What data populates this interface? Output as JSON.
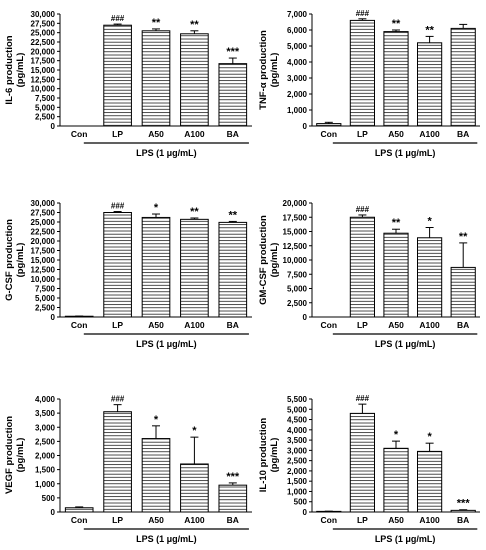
{
  "chart_data": [
    {
      "type": "bar",
      "categories": [
        "Con",
        "LP",
        "A50",
        "A100",
        "BA"
      ],
      "values": [
        0,
        27000,
        25500,
        24700,
        16700
      ],
      "errors": [
        0,
        300,
        500,
        800,
        1500
      ],
      "significance": [
        "",
        "###",
        "**",
        "**",
        "***"
      ],
      "ylabel": [
        "IL-6 production",
        "(pg/mL)"
      ],
      "ylim": [
        0,
        30000
      ],
      "yticks": [
        "0",
        "2,500",
        "5,000",
        "7,500",
        "10,000",
        "12,500",
        "15,000",
        "17,500",
        "20,000",
        "22,500",
        "25,000",
        "27,500",
        "30,000"
      ],
      "group_label": "LPS (1 μg/mL)"
    },
    {
      "type": "bar",
      "categories": [
        "Con",
        "LP",
        "A50",
        "A100",
        "BA"
      ],
      "values": [
        150,
        6600,
        5900,
        5200,
        6100
      ],
      "errors": [
        80,
        100,
        100,
        400,
        250
      ],
      "significance": [
        "",
        "###",
        "**",
        "**",
        ""
      ],
      "ylabel": [
        "TNF-α production",
        "(pg/mL)"
      ],
      "ylim": [
        0,
        7000
      ],
      "yticks": [
        "0",
        "1,000",
        "2,000",
        "3,000",
        "4,000",
        "5,000",
        "6,000",
        "7,000"
      ],
      "group_label": "LPS (1 μg/mL)"
    },
    {
      "type": "bar",
      "categories": [
        "Con",
        "LP",
        "A50",
        "A100",
        "BA"
      ],
      "values": [
        200,
        27500,
        26200,
        25700,
        24900
      ],
      "errors": [
        50,
        250,
        900,
        350,
        250
      ],
      "significance": [
        "",
        "###",
        "*",
        "**",
        "**"
      ],
      "ylabel": [
        "G-CSF production",
        "(pg/mL)"
      ],
      "ylim": [
        0,
        30000
      ],
      "yticks": [
        "0",
        "2,500",
        "5,000",
        "7,500",
        "10,000",
        "12,500",
        "15,000",
        "17,500",
        "20,000",
        "22,500",
        "25,000",
        "27,500",
        "30,000"
      ],
      "group_label": "LPS (1 μg/mL)"
    },
    {
      "type": "bar",
      "categories": [
        "Con",
        "LP",
        "A50",
        "A100",
        "BA"
      ],
      "values": [
        0,
        17500,
        14700,
        13900,
        8700
      ],
      "errors": [
        0,
        400,
        700,
        1800,
        4300
      ],
      "significance": [
        "",
        "###",
        "**",
        "*",
        "**"
      ],
      "ylabel": [
        "GM-CSF production",
        "(pg/mL)"
      ],
      "ylim": [
        0,
        20000
      ],
      "yticks": [
        "0",
        "2,500",
        "5,000",
        "7,500",
        "10,000",
        "12,500",
        "15,000",
        "17,500",
        "20,000"
      ],
      "group_label": "LPS (1 μg/mL)"
    },
    {
      "type": "bar",
      "categories": [
        "Con",
        "LP",
        "A50",
        "A100",
        "BA"
      ],
      "values": [
        150,
        3550,
        2600,
        1700,
        950
      ],
      "errors": [
        30,
        250,
        450,
        950,
        80
      ],
      "significance": [
        "",
        "###",
        "*",
        "*",
        "***"
      ],
      "ylabel": [
        "VEGF production",
        "(pg/mL)"
      ],
      "ylim": [
        0,
        4000
      ],
      "yticks": [
        "0",
        "500",
        "1,000",
        "1,500",
        "2,000",
        "2,500",
        "3,000",
        "3,500",
        "4,000"
      ],
      "group_label": "LPS (1 μg/mL)"
    },
    {
      "type": "bar",
      "categories": [
        "Con",
        "LP",
        "A50",
        "A100",
        "BA"
      ],
      "values": [
        30,
        4800,
        3100,
        2950,
        80
      ],
      "errors": [
        10,
        450,
        350,
        400,
        30
      ],
      "significance": [
        "",
        "###",
        "*",
        "*",
        "***"
      ],
      "ylabel": [
        "IL-10 production",
        "(pg/mL)"
      ],
      "ylim": [
        0,
        5500
      ],
      "yticks": [
        "0",
        "500",
        "1,000",
        "1,500",
        "2,000",
        "2,500",
        "3,000",
        "3,500",
        "4,000",
        "4,500",
        "5,000",
        "5,500"
      ],
      "group_label": "LPS (1 μg/mL)"
    }
  ]
}
